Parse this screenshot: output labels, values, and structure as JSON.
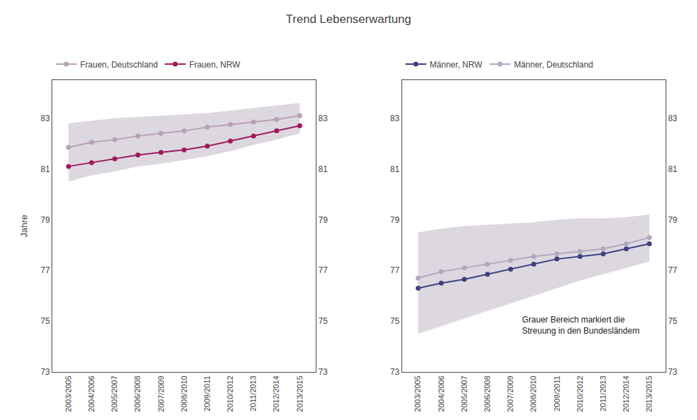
{
  "chart_data": [
    {
      "type": "line",
      "title": "Trend Lebenserwartung",
      "y_label": "Jahre",
      "categories": [
        "2003/2005",
        "2004/2006",
        "2005/2007",
        "2006/2008",
        "2007/2009",
        "2008/2010",
        "2009/2011",
        "2010/2012",
        "2011/2013",
        "2012/2014",
        "2013/2015"
      ],
      "ylim": [
        73,
        84.5
      ],
      "yticks": [
        73,
        75,
        77,
        79,
        81,
        83
      ],
      "grid": false,
      "legend": "upper left",
      "band": {
        "lower": [
          80.5,
          80.75,
          80.9,
          81.1,
          81.2,
          81.35,
          81.5,
          81.7,
          81.95,
          82.15,
          82.4
        ],
        "upper": [
          82.8,
          82.9,
          83.0,
          83.05,
          83.1,
          83.15,
          83.2,
          83.3,
          83.4,
          83.5,
          83.6
        ],
        "color": "#ddd8e0"
      },
      "series": [
        {
          "name": "Frauen, NRW",
          "color": "#9e1a5e",
          "marker": "circle",
          "line_style": "solid",
          "values": [
            81.1,
            81.25,
            81.4,
            81.55,
            81.65,
            81.75,
            81.9,
            82.1,
            82.3,
            82.5,
            82.7
          ]
        },
        {
          "name": "Frauen, Deutschland",
          "color": "#b8a0b8",
          "marker": "circle",
          "line_style": "solid",
          "values": [
            81.85,
            82.05,
            82.15,
            82.3,
            82.4,
            82.5,
            82.65,
            82.75,
            82.85,
            82.95,
            83.1
          ]
        }
      ]
    },
    {
      "type": "line",
      "categories": [
        "2003/2005",
        "2004/2006",
        "2005/2007",
        "2006/2008",
        "2007/2009",
        "2008/2010",
        "2009/2011",
        "2010/2012",
        "2011/2013",
        "2012/2014",
        "2013/2015"
      ],
      "ylim": [
        73,
        84.5
      ],
      "yticks": [
        73,
        75,
        77,
        79,
        81,
        83
      ],
      "grid": false,
      "legend": "upper left",
      "annotation": "Grauer Bereich markiert die\nStreuung in den Bundesländern",
      "band": {
        "lower": [
          74.5,
          74.8,
          75.1,
          75.4,
          75.7,
          76.0,
          76.3,
          76.6,
          76.85,
          77.1,
          77.35
        ],
        "upper": [
          78.5,
          78.65,
          78.75,
          78.8,
          78.85,
          78.9,
          79.0,
          79.05,
          79.05,
          79.1,
          79.2
        ],
        "color": "#ddd8e0"
      },
      "series": [
        {
          "name": "Männer, NRW",
          "color": "#3d4080",
          "marker": "circle",
          "line_style": "solid",
          "values": [
            76.3,
            76.5,
            76.65,
            76.85,
            77.05,
            77.25,
            77.45,
            77.55,
            77.65,
            77.85,
            78.05
          ]
        },
        {
          "name": "Männer, Deutschland",
          "color": "#b0a8c0",
          "marker": "circle",
          "line_style": "solid",
          "values": [
            76.7,
            76.95,
            77.1,
            77.25,
            77.4,
            77.55,
            77.65,
            77.75,
            77.85,
            78.05,
            78.3
          ]
        }
      ]
    }
  ]
}
